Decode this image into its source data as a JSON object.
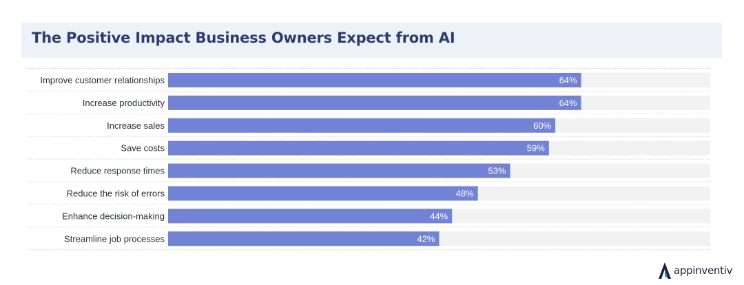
{
  "title": "The Positive Impact Business Owners Expect from AI",
  "brand": {
    "name": "appinventiv",
    "icon": "appinventiv-logo-icon"
  },
  "colors": {
    "bar": "#7282d4",
    "track": "#f2f2f2",
    "title_bg": "#edf1f8",
    "title_text": "#2d3c6b",
    "logo_blue": "#2b7fe0"
  },
  "chart_data": {
    "type": "bar",
    "orientation": "horizontal",
    "categories": [
      "Improve customer relationships",
      "Increase productivity",
      "Increase sales",
      "Save costs",
      "Reduce response times",
      "Reduce the risk of errors",
      "Enhance decision-making",
      "Streamline job processes"
    ],
    "values": [
      64,
      64,
      60,
      59,
      53,
      48,
      44,
      42
    ],
    "value_labels": [
      "64%",
      "64%",
      "60%",
      "59%",
      "53%",
      "48%",
      "44%",
      "42%"
    ],
    "xlim": [
      0,
      100
    ],
    "grid": false,
    "legend": "none"
  }
}
